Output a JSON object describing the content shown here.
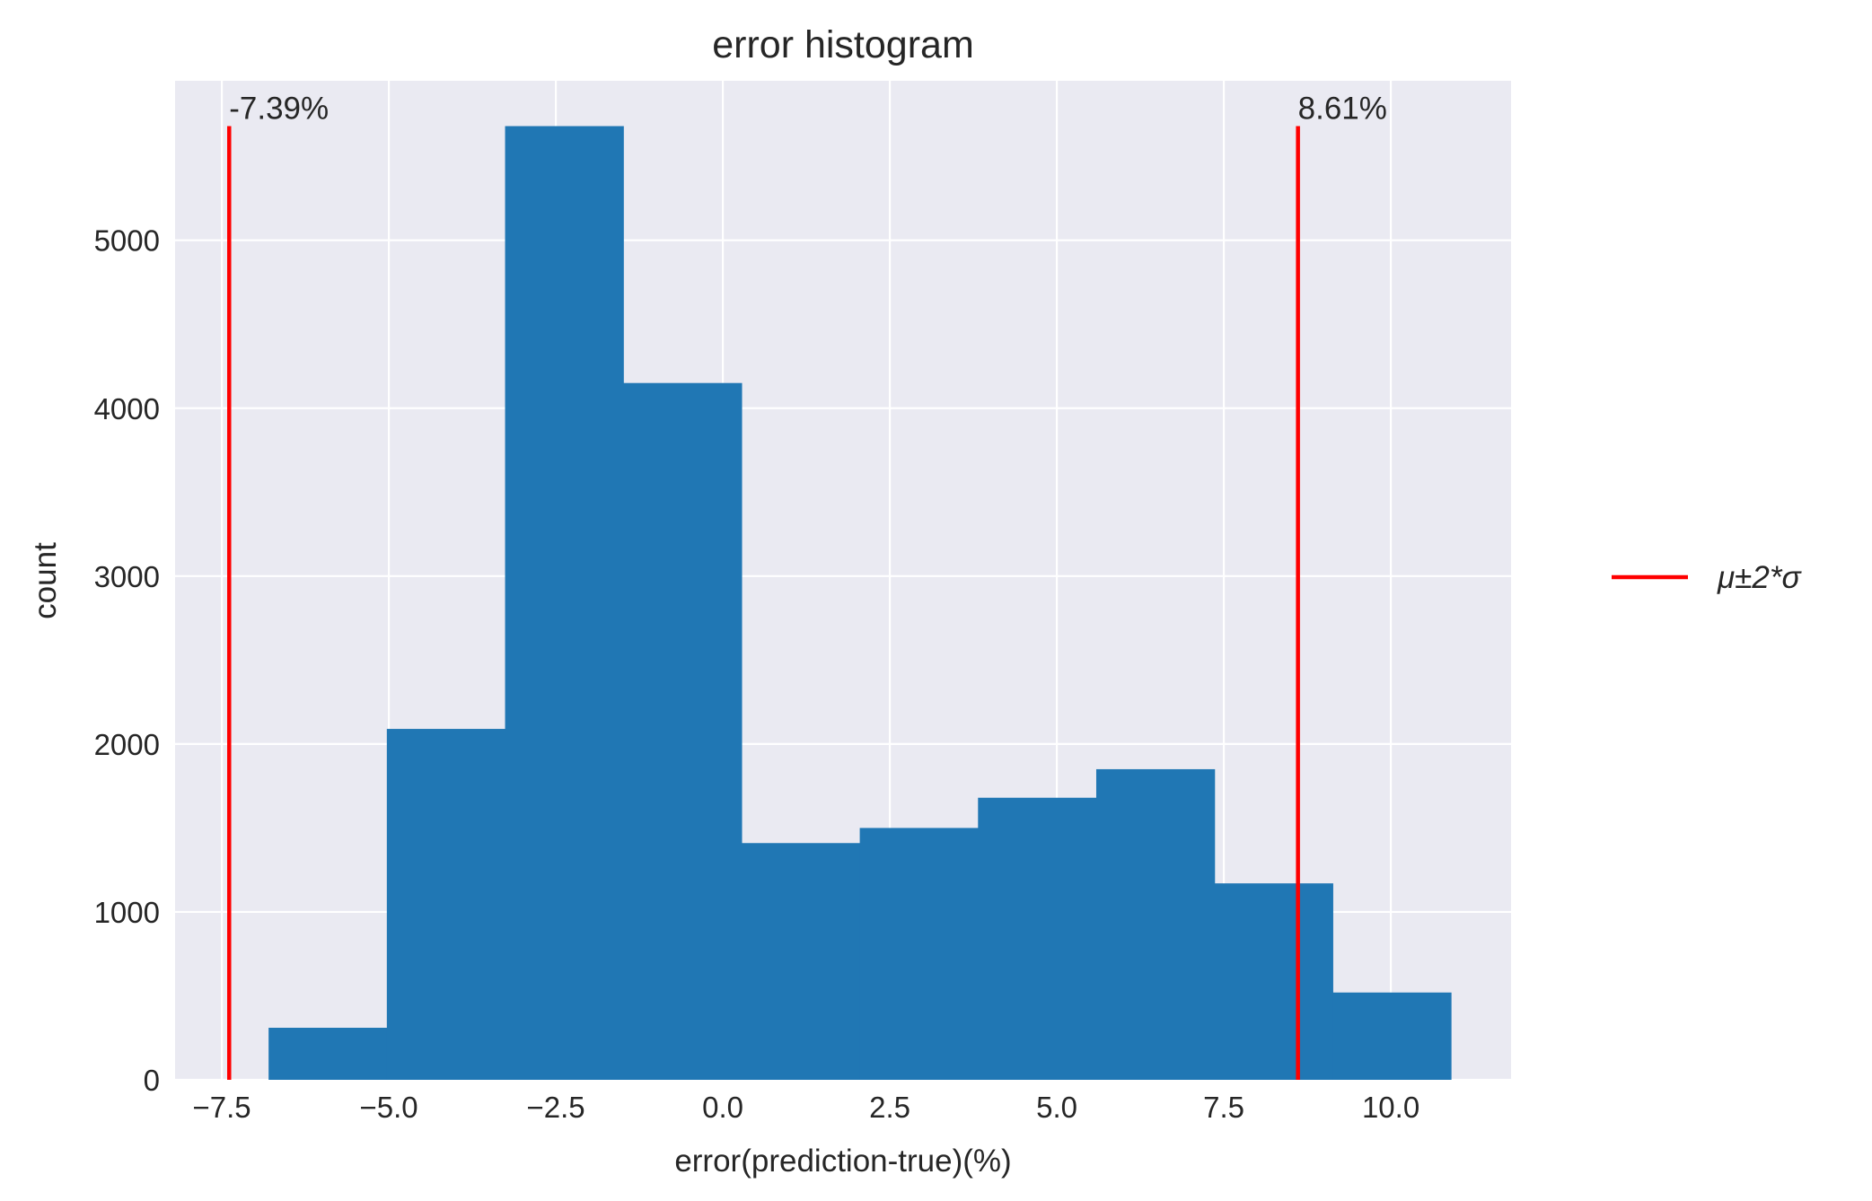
{
  "chart_data": {
    "type": "bar",
    "title": "error histogram",
    "xlabel": "error(prediction-true)(%)",
    "ylabel": "count",
    "xlim": [
      -8.2,
      11.8
    ],
    "ylim": [
      0,
      5950
    ],
    "grid": true,
    "legend_position": "right",
    "x_ticks": [
      "−7.5",
      "−5.0",
      "−2.5",
      "0.0",
      "2.5",
      "5.0",
      "7.5",
      "10.0"
    ],
    "x_tick_values": [
      -7.5,
      -5.0,
      -2.5,
      0.0,
      2.5,
      5.0,
      7.5,
      10.0
    ],
    "y_ticks": [
      "0",
      "1000",
      "2000",
      "3000",
      "4000",
      "5000"
    ],
    "y_tick_values": [
      0,
      1000,
      2000,
      3000,
      4000,
      5000
    ],
    "bin_edges": [
      -6.8,
      -5.03,
      -3.26,
      -1.49,
      0.28,
      2.05,
      3.82,
      5.59,
      7.36,
      9.13,
      10.9
    ],
    "counts": [
      310,
      2090,
      5680,
      4150,
      1410,
      1500,
      1680,
      1850,
      1170,
      520
    ],
    "bar_color": "#2077b4",
    "reference_lines": [
      {
        "x": -7.39,
        "label": "-7.39%"
      },
      {
        "x": 8.61,
        "label": "8.61%"
      }
    ],
    "reference_line_color": "#ff0000",
    "reference_line_top": 5680,
    "legend": [
      {
        "name": "μ±2*σ",
        "color": "#ff0000"
      }
    ],
    "background_color": "#eaeaf2",
    "grid_color": "#ffffff"
  }
}
